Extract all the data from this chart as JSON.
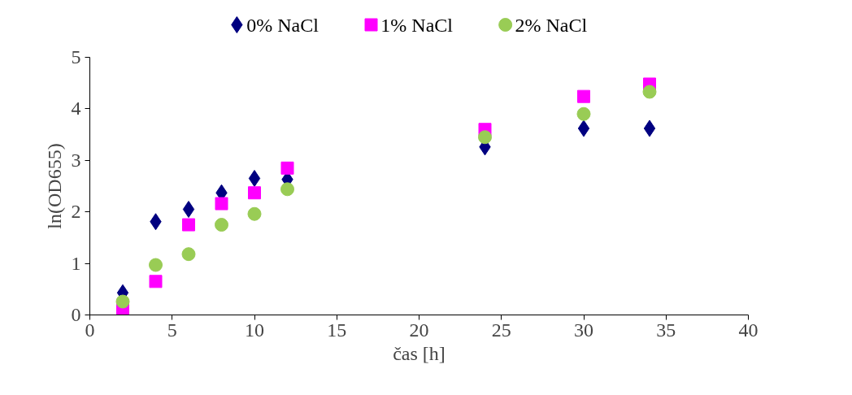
{
  "chart_data": {
    "type": "scatter",
    "xlabel": "čas [h]",
    "ylabel": "ln(OD655)",
    "x": [
      2,
      4,
      6,
      8,
      10,
      12,
      24,
      30,
      34
    ],
    "series": [
      {
        "name": "0% NaCl",
        "color": "#000080",
        "marker": "diamond",
        "values": [
          0.43,
          1.81,
          2.05,
          2.37,
          2.65,
          2.63,
          3.26,
          3.62,
          3.62
        ]
      },
      {
        "name": "1% NaCl",
        "color": "#ff00ff",
        "marker": "square",
        "values": [
          0.13,
          0.65,
          1.75,
          2.16,
          2.37,
          2.85,
          3.6,
          4.24,
          4.48
        ]
      },
      {
        "name": "2% NaCl",
        "color": "#99cc55",
        "marker": "circle",
        "values": [
          0.26,
          0.97,
          1.18,
          1.75,
          1.96,
          2.44,
          3.45,
          3.9,
          4.33
        ]
      }
    ],
    "xlim": [
      0,
      40
    ],
    "xticks": [
      0,
      5,
      10,
      15,
      20,
      25,
      30,
      35,
      40
    ],
    "ylim": [
      0,
      5
    ],
    "yticks": [
      0,
      1,
      2,
      3,
      4,
      5
    ],
    "grid": false,
    "legend": "top"
  }
}
